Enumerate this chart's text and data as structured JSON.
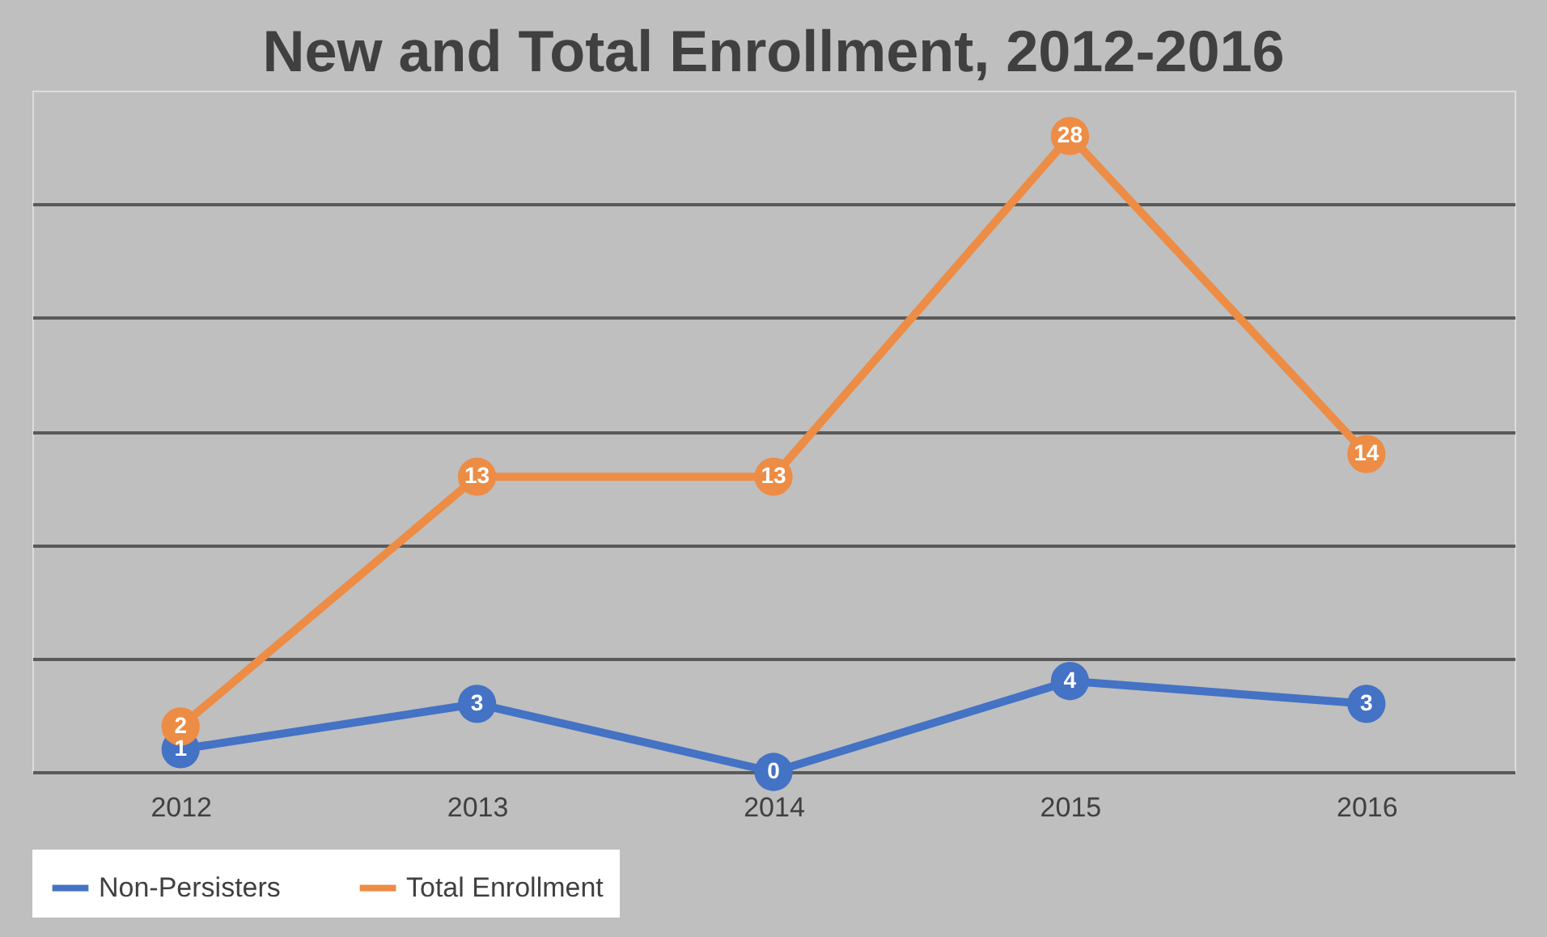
{
  "chart_data": {
    "type": "line",
    "title": "New and Total Enrollment, 2012-2016",
    "categories": [
      "2012",
      "2013",
      "2014",
      "2015",
      "2016"
    ],
    "series": [
      {
        "name": "Non-Persisters",
        "color": "#4472c4",
        "values": [
          1,
          3,
          0,
          4,
          3
        ]
      },
      {
        "name": "Total Enrollment",
        "color": "#ed8c45",
        "values": [
          2,
          13,
          13,
          28,
          14
        ]
      }
    ],
    "ylim": [
      0,
      30
    ],
    "yticks": [
      {
        "value": 0,
        "label": null
      },
      {
        "value": 5,
        "label": null
      },
      {
        "value": 10,
        "label": null
      },
      {
        "value": 15,
        "label": null
      },
      {
        "value": 20,
        "label": null
      },
      {
        "value": 25,
        "label": null
      }
    ],
    "tick_labels": "x",
    "grid": "y",
    "legend": "bottom",
    "marker": "circle",
    "line_style": "solid",
    "data_labels": true
  }
}
